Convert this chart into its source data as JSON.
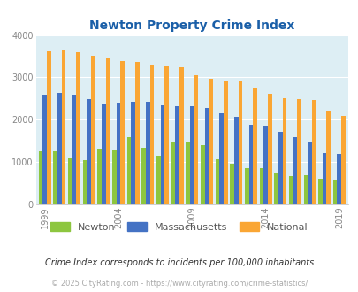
{
  "title": "Newton Property Crime Index",
  "newton_color": "#8dc63f",
  "mass_color": "#4472c4",
  "national_color": "#faa634",
  "bg_color": "#ddeef4",
  "title_color": "#1a5fa8",
  "ylabel_max": 4000,
  "yticks": [
    0,
    1000,
    2000,
    3000,
    4000
  ],
  "subtitle": "Crime Index corresponds to incidents per 100,000 inhabitants",
  "footer": "© 2025 CityRating.com - https://www.cityrating.com/crime-statistics/",
  "legend_labels": [
    "Newton",
    "Massachusetts",
    "National"
  ],
  "xtick_years": [
    1999,
    2004,
    2009,
    2014,
    2019
  ],
  "years": [
    1999,
    2000,
    2001,
    2002,
    2003,
    2004,
    2005,
    2006,
    2007,
    2008,
    2009,
    2010,
    2011,
    2012,
    2013,
    2014,
    2015,
    2016,
    2017,
    2018,
    2019
  ],
  "newton": [
    1260,
    1255,
    1095,
    1050,
    1310,
    1290,
    1590,
    1345,
    1140,
    1475,
    1465,
    1410,
    1060,
    960,
    850,
    850,
    745,
    665,
    690,
    605,
    590
  ],
  "massachusetts": [
    2590,
    2640,
    2595,
    2490,
    2385,
    2410,
    2430,
    2430,
    2335,
    2330,
    2310,
    2285,
    2160,
    2060,
    1885,
    1860,
    1715,
    1580,
    1455,
    1210,
    1185
  ],
  "national": [
    3620,
    3660,
    3600,
    3510,
    3460,
    3380,
    3360,
    3310,
    3250,
    3230,
    3060,
    2960,
    2910,
    2900,
    2760,
    2620,
    2515,
    2495,
    2460,
    2205,
    2095
  ]
}
